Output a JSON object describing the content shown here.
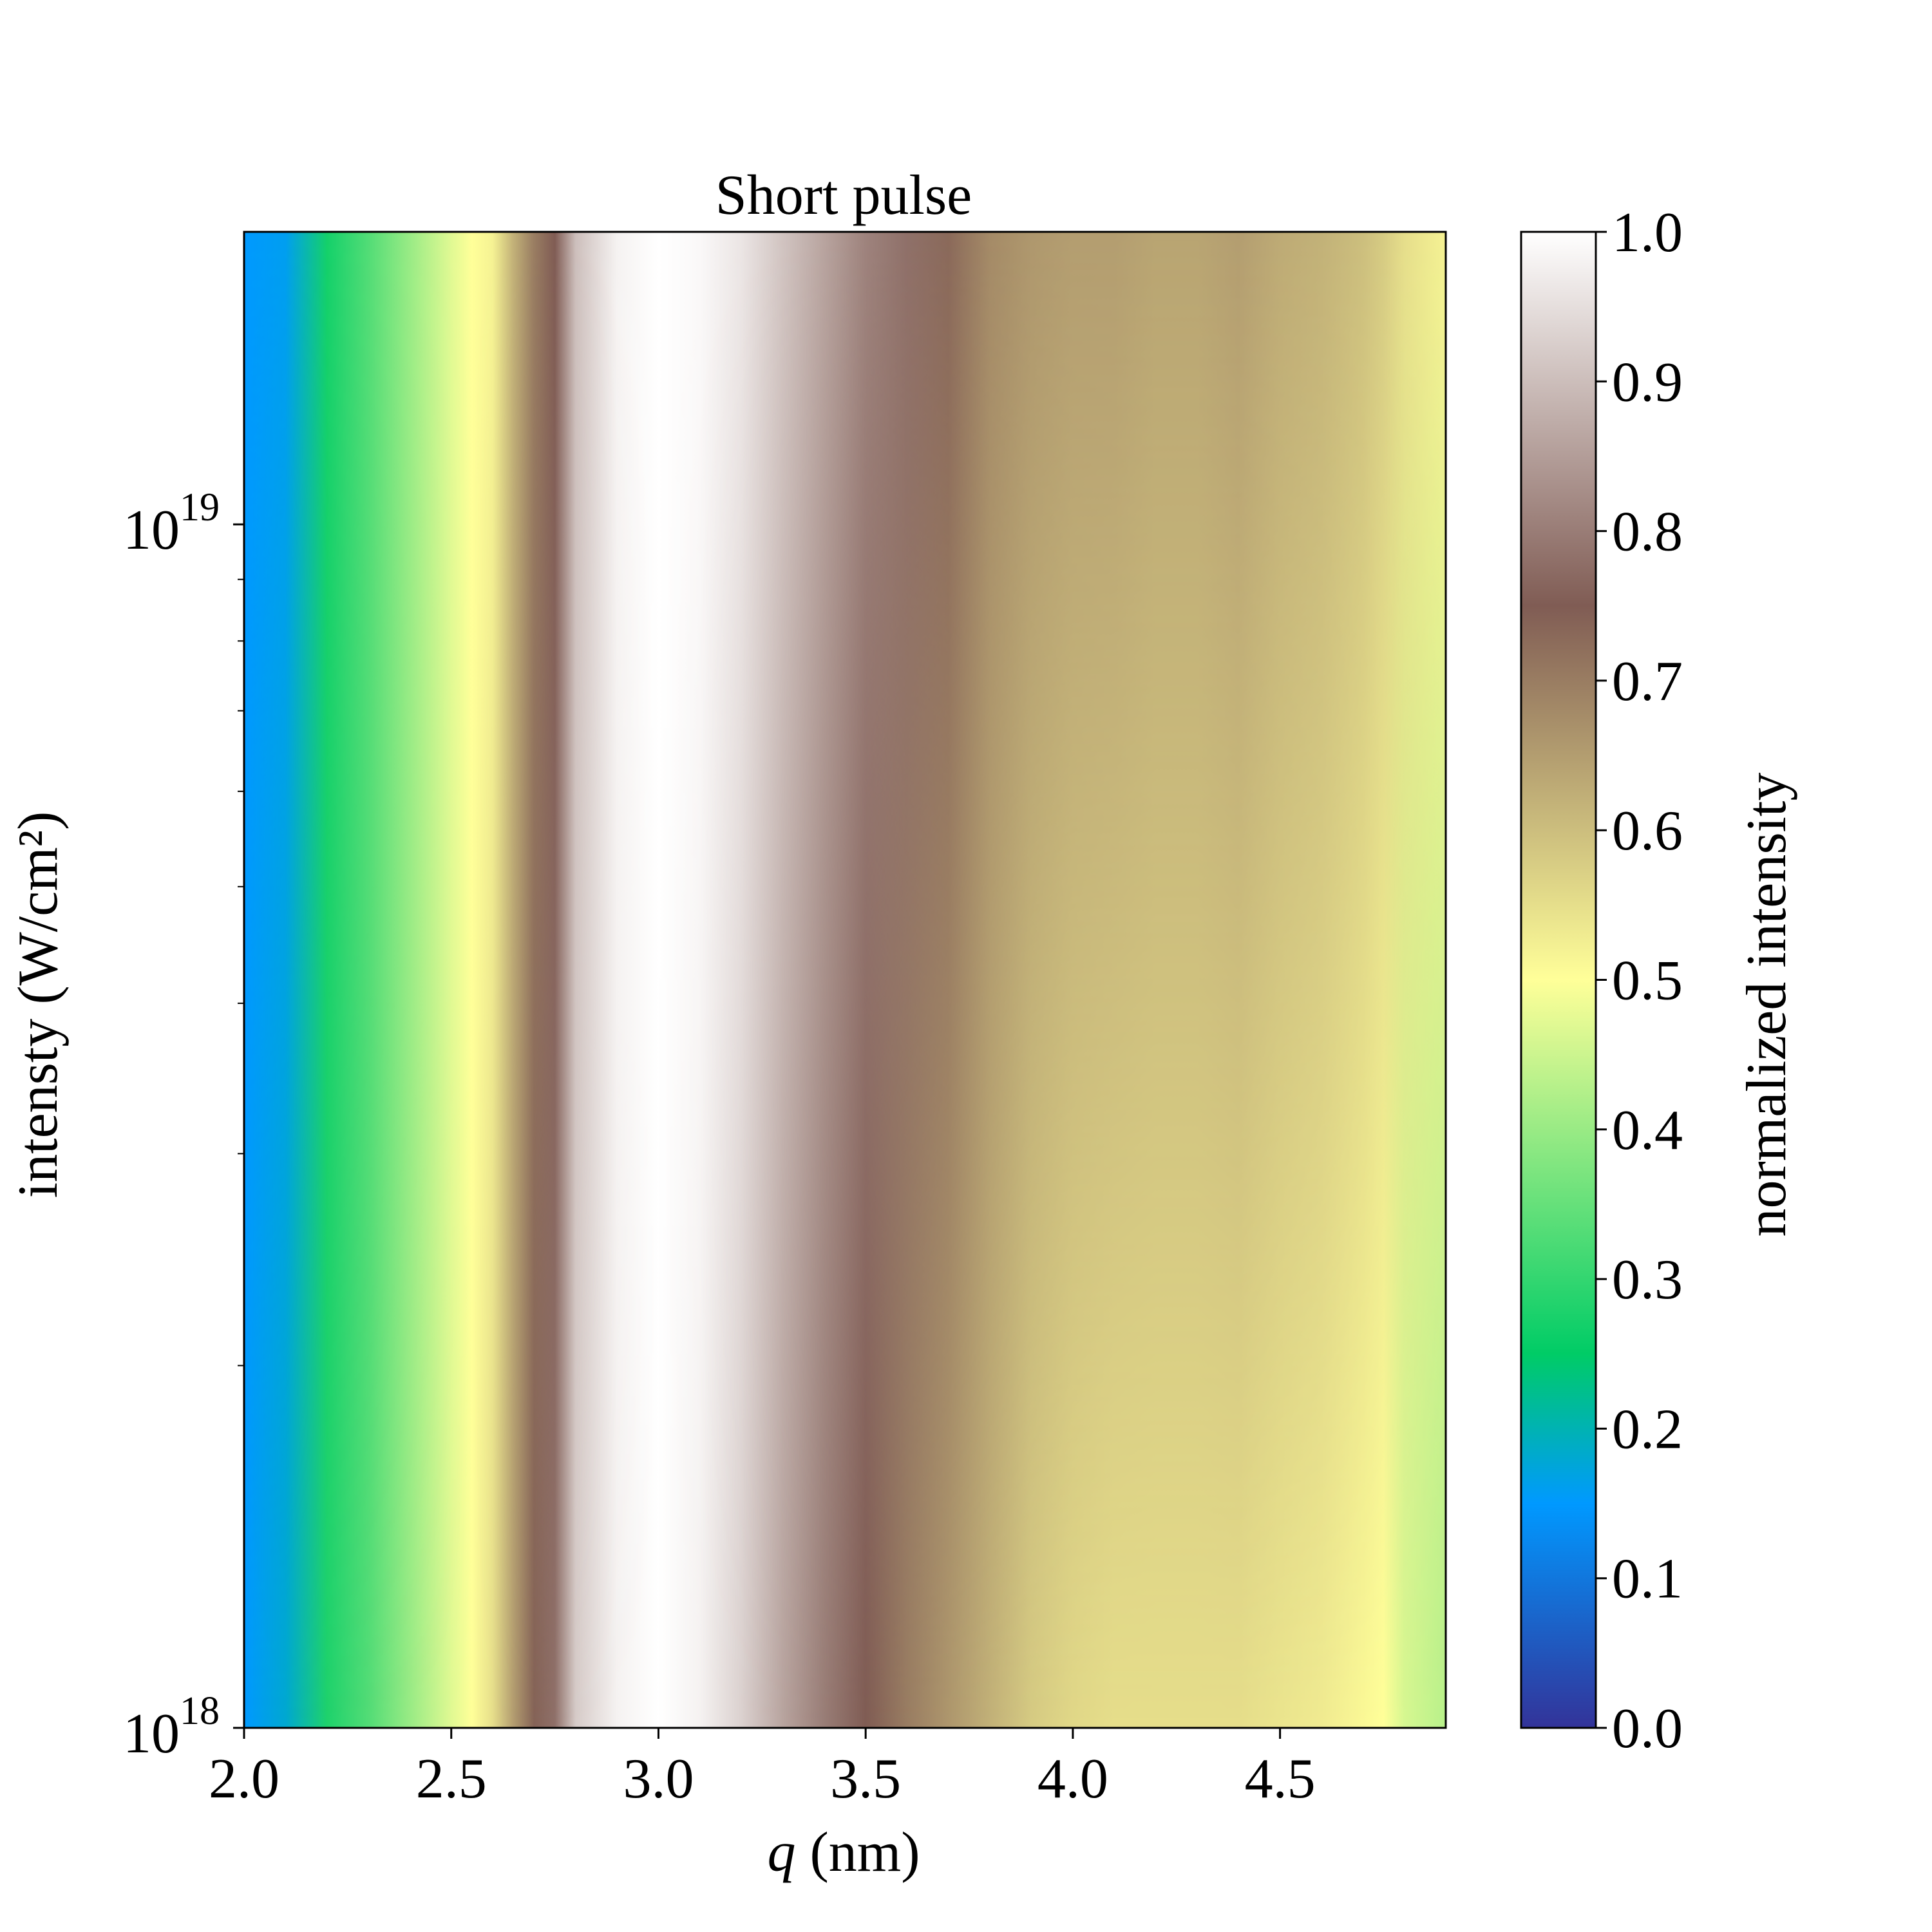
{
  "chart_data": {
    "type": "heatmap",
    "title": "Short pulse",
    "xlabel": {
      "italic": "q",
      "rest": " (nm)"
    },
    "ylabel": "intensty (W/cm²)",
    "xlim": [
      2.0,
      4.9
    ],
    "ylim": [
      1e+18,
      1.75e+19
    ],
    "yscale": "log",
    "x_ticks": [
      2.0,
      2.5,
      3.0,
      3.5,
      4.0,
      4.5
    ],
    "x_tick_labels": [
      "2.0",
      "2.5",
      "3.0",
      "3.5",
      "4.0",
      "4.5"
    ],
    "y_ticks": [
      {
        "value": 1e+18,
        "base": "10",
        "exp": "18"
      },
      {
        "value": 1e+19,
        "base": "10",
        "exp": "19"
      }
    ],
    "y_minor_ticks": [
      2e+18,
      3e+18,
      4e+18,
      5e+18,
      6e+18,
      7e+18,
      8e+18,
      9e+18
    ],
    "colorbar": {
      "label": "normalized intensity",
      "range": [
        0.0,
        1.0
      ],
      "ticks": [
        "0.0",
        "0.1",
        "0.2",
        "0.3",
        "0.4",
        "0.5",
        "0.6",
        "0.7",
        "0.8",
        "0.9",
        "1.0"
      ],
      "colormap": "terrain",
      "stops": [
        {
          "v": 0.0,
          "color": "#333399"
        },
        {
          "v": 0.15,
          "color": "#0099ff"
        },
        {
          "v": 0.25,
          "color": "#00cc66"
        },
        {
          "v": 0.5,
          "color": "#ffff99"
        },
        {
          "v": 0.75,
          "color": "#805c54"
        },
        {
          "v": 1.0,
          "color": "#ffffff"
        }
      ]
    },
    "profile_q": [
      2.0,
      2.1,
      2.2,
      2.3,
      2.4,
      2.5,
      2.55,
      2.6,
      2.65,
      2.7,
      2.75,
      2.8,
      2.9,
      3.0,
      3.1,
      3.2,
      3.3,
      3.4,
      3.5,
      3.6,
      3.7,
      3.8,
      3.9,
      4.0,
      4.1,
      4.2,
      4.3,
      4.4,
      4.5,
      4.6,
      4.7,
      4.75,
      4.8,
      4.9
    ],
    "profile_low": [
      0.15,
      0.18,
      0.28,
      0.33,
      0.4,
      0.47,
      0.5,
      0.55,
      0.65,
      0.74,
      0.78,
      0.92,
      0.98,
      1.0,
      0.98,
      0.93,
      0.86,
      0.8,
      0.75,
      0.7,
      0.66,
      0.62,
      0.58,
      0.56,
      0.55,
      0.55,
      0.55,
      0.55,
      0.54,
      0.53,
      0.51,
      0.5,
      0.46,
      0.43
    ],
    "profile_high": [
      0.15,
      0.16,
      0.27,
      0.33,
      0.4,
      0.47,
      0.5,
      0.52,
      0.62,
      0.7,
      0.75,
      0.9,
      0.98,
      1.0,
      0.99,
      0.96,
      0.91,
      0.86,
      0.81,
      0.78,
      0.73,
      0.68,
      0.66,
      0.65,
      0.65,
      0.64,
      0.64,
      0.65,
      0.63,
      0.62,
      0.6,
      0.58,
      0.55,
      0.52
    ]
  }
}
